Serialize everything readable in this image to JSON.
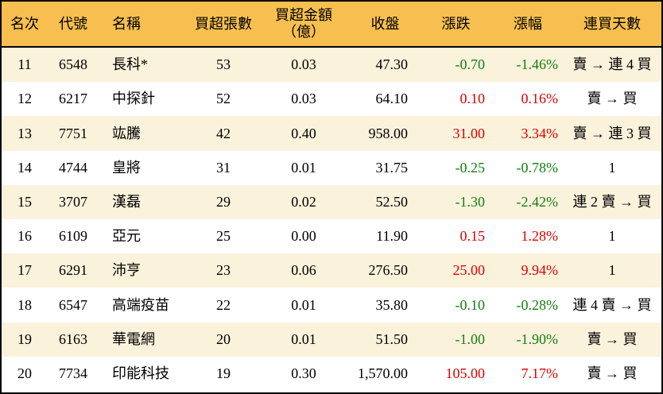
{
  "colors": {
    "header_bg": "#F7BF4F",
    "row_alt_bg": "#FBF2DC",
    "row_bg": "#FFFFFF",
    "border": "#000000",
    "up_text": "#DF0000",
    "down_text": "#117F11"
  },
  "table": {
    "columns": [
      {
        "key": "rank",
        "label": "名次"
      },
      {
        "key": "code",
        "label": "代號"
      },
      {
        "key": "name",
        "label": "名稱"
      },
      {
        "key": "volume",
        "label": "買超張數"
      },
      {
        "key": "amount",
        "label": "買超金額\n（億）"
      },
      {
        "key": "close",
        "label": "收盤"
      },
      {
        "key": "change",
        "label": "漲跌"
      },
      {
        "key": "pct",
        "label": "漲幅"
      },
      {
        "key": "streak",
        "label": "連買天數"
      }
    ],
    "rows": [
      {
        "rank": "11",
        "code": "6548",
        "name": "長科*",
        "volume": "53",
        "amount": "0.03",
        "close": "47.30",
        "change": "-0.70",
        "pct": "-1.46%",
        "streak": "賣 → 連 4 買",
        "dir": "down"
      },
      {
        "rank": "12",
        "code": "6217",
        "name": "中探針",
        "volume": "52",
        "amount": "0.03",
        "close": "64.10",
        "change": "0.10",
        "pct": "0.16%",
        "streak": "賣 → 買",
        "dir": "up"
      },
      {
        "rank": "13",
        "code": "7751",
        "name": "竑騰",
        "volume": "42",
        "amount": "0.40",
        "close": "958.00",
        "change": "31.00",
        "pct": "3.34%",
        "streak": "賣 → 連 3 買",
        "dir": "up"
      },
      {
        "rank": "14",
        "code": "4744",
        "name": "皇將",
        "volume": "31",
        "amount": "0.01",
        "close": "31.75",
        "change": "-0.25",
        "pct": "-0.78%",
        "streak": "1",
        "dir": "down"
      },
      {
        "rank": "15",
        "code": "3707",
        "name": "漢磊",
        "volume": "29",
        "amount": "0.02",
        "close": "52.50",
        "change": "-1.30",
        "pct": "-2.42%",
        "streak": "連 2 賣 → 買",
        "dir": "down"
      },
      {
        "rank": "16",
        "code": "6109",
        "name": "亞元",
        "volume": "25",
        "amount": "0.00",
        "close": "11.90",
        "change": "0.15",
        "pct": "1.28%",
        "streak": "1",
        "dir": "up"
      },
      {
        "rank": "17",
        "code": "6291",
        "name": "沛亨",
        "volume": "23",
        "amount": "0.06",
        "close": "276.50",
        "change": "25.00",
        "pct": "9.94%",
        "streak": "1",
        "dir": "up"
      },
      {
        "rank": "18",
        "code": "6547",
        "name": "高端疫苗",
        "volume": "22",
        "amount": "0.01",
        "close": "35.80",
        "change": "-0.10",
        "pct": "-0.28%",
        "streak": "連 4 賣 → 買",
        "dir": "down"
      },
      {
        "rank": "19",
        "code": "6163",
        "name": "華電網",
        "volume": "20",
        "amount": "0.01",
        "close": "51.50",
        "change": "-1.00",
        "pct": "-1.90%",
        "streak": "賣 → 買",
        "dir": "down"
      },
      {
        "rank": "20",
        "code": "7734",
        "name": "印能科技",
        "volume": "19",
        "amount": "0.30",
        "close": "1,570.00",
        "change": "105.00",
        "pct": "7.17%",
        "streak": "賣 → 買",
        "dir": "up"
      }
    ]
  }
}
